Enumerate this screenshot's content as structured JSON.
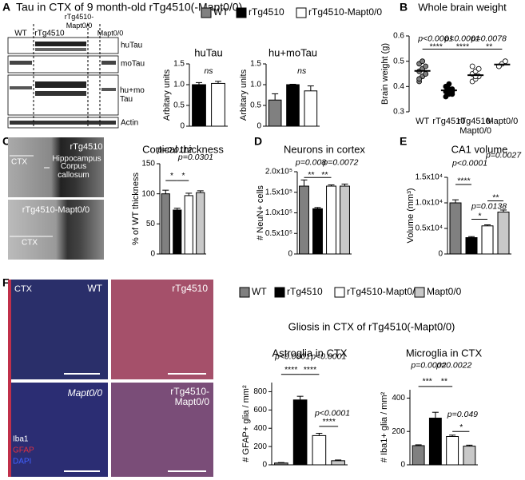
{
  "texts": {
    "title_a": "Tau in CTX of 9 month-old rTg4510(-Mapt0/0)",
    "title_f": "Gliosis in CTX of rTg4510(-Mapt0/0)"
  },
  "panel_letters": [
    "A",
    "B",
    "C",
    "D",
    "E",
    "F"
  ],
  "blot": {
    "lanes": [
      "WT",
      "rTg4510",
      "rTg4510-Mapt0/0",
      "Mapt0/0"
    ],
    "rows": [
      "huTau",
      "moTau",
      "hu+mo Tau",
      "Actin"
    ]
  },
  "images_c": [
    "rTg4510",
    "Hippocampus",
    "CTX",
    "Corpus callosum",
    "rTg4510-Mapt0/0",
    "CTX"
  ],
  "images_f": [
    "CTX",
    "WT",
    "rTg4510",
    "Mapt0/0",
    "rTg4510-Mapt0/0",
    "Iba1",
    "GFAP",
    "DAPI"
  ],
  "legends": {
    "top": [
      {
        "name": "WT",
        "color": "#808080"
      },
      {
        "name": "rTg4510",
        "color": "#000000"
      },
      {
        "name": "rTg4510-Mapt0/0",
        "color": "#ffffff"
      }
    ],
    "bottom": [
      {
        "name": "WT",
        "color": "#808080"
      },
      {
        "name": "rTg4510",
        "color": "#000000"
      },
      {
        "name": "rTg4510-Mapt0/0",
        "color": "#ffffff"
      },
      {
        "name": "Mapt0/0",
        "color": "#c8c8c8"
      }
    ]
  },
  "chart_data": [
    {
      "type": "bar",
      "title": "huTau",
      "ylabel": "Arbitary units",
      "categories": [
        null,
        null
      ],
      "values": [
        1.0,
        1.03
      ],
      "errors": [
        0.05,
        0.05
      ],
      "colors": [
        "#000000",
        "#ffffff"
      ],
      "ylim": [
        0,
        1.5
      ],
      "yticks": [
        0,
        0.5,
        {
          "value": 1,
          "label": "1.0"
        },
        1.5
      ],
      "annotations": [
        "ns"
      ]
    },
    {
      "type": "bar",
      "title": "hu+moTau",
      "ylabel": "Arbitary units",
      "categories": [
        null,
        null,
        null
      ],
      "values": [
        0.63,
        1.0,
        0.85
      ],
      "errors": [
        0.15,
        0.01,
        0.12
      ],
      "colors": [
        "#808080",
        "#000000",
        "#ffffff"
      ],
      "ylim": [
        0,
        1.5
      ],
      "yticks": [
        0,
        0.5,
        {
          "value": 1,
          "label": "1.0"
        },
        1.5
      ],
      "annotations": [
        "ns"
      ]
    },
    {
      "type": "dot",
      "title": "Whole brain weight",
      "ylabel": "Brain weight (g)",
      "categories": [
        "WT",
        "rTg4510",
        "rTg4510-Mapt0/0",
        "Mapt0/0"
      ],
      "points": [
        [
          0.42,
          0.44,
          0.45,
          0.46,
          0.47,
          0.48,
          0.49,
          0.5,
          0.45,
          0.43
        ],
        [
          0.36,
          0.37,
          0.38,
          0.38,
          0.39,
          0.39,
          0.4,
          0.41,
          0.37
        ],
        [
          0.42,
          0.43,
          0.44,
          0.45,
          0.46,
          0.47,
          0.48,
          0.44
        ],
        [
          0.48,
          0.49,
          0.5,
          0.48
        ]
      ],
      "means": [
        0.462,
        0.385,
        0.445,
        0.487
      ],
      "colors": [
        "#808080",
        "#000000",
        "#ffffff",
        "#ffffff"
      ],
      "ylim": [
        0.3,
        0.6
      ],
      "yticks": [
        0.3,
        0.4,
        0.5,
        0.6
      ],
      "annotations": [
        "p<0.0001",
        "****",
        "p<0.0001",
        "****",
        "p=0.0078",
        "**"
      ]
    },
    {
      "type": "bar",
      "title": "Cortical thickness",
      "ylabel": "% of WT thickness",
      "categories": [
        null,
        null,
        null,
        null
      ],
      "values": [
        100,
        73,
        97,
        102
      ],
      "errors": [
        6,
        3,
        4,
        3
      ],
      "colors": [
        "#808080",
        "#000000",
        "#ffffff",
        "#c8c8c8"
      ],
      "ylim": [
        0,
        150
      ],
      "yticks": [
        0,
        50,
        100,
        150
      ],
      "annotations": [
        "p=0.0112",
        "*",
        "p=0.0301",
        "*"
      ]
    },
    {
      "type": "bar",
      "title": "Neurons in cortex",
      "ylabel": "# NeuN+ cells",
      "categories": [
        null,
        null,
        null,
        null
      ],
      "values": [
        165000,
        110000,
        165000,
        165000
      ],
      "errors": [
        15000,
        3000,
        3000,
        5000
      ],
      "colors": [
        "#808080",
        "#000000",
        "#ffffff",
        "#c8c8c8"
      ],
      "ylim": [
        0,
        200000
      ],
      "yticks": [
        0,
        {
          "value": 50000,
          "label": "0.5x10⁵"
        },
        {
          "value": 100000,
          "label": "1.0x10⁵"
        },
        {
          "value": 150000,
          "label": "1.5x10⁵"
        },
        {
          "value": 200000,
          "label": "2.0x10⁵"
        }
      ],
      "annotations": [
        "p=0.008",
        "**",
        "p=0.0072",
        "**"
      ]
    },
    {
      "type": "bar",
      "title": "CA1 volume",
      "ylabel": "Volume (mm³)",
      "categories": [
        null,
        null,
        null,
        null
      ],
      "values": [
        10000,
        3200,
        5500,
        8200
      ],
      "errors": [
        600,
        200,
        200,
        400
      ],
      "colors": [
        "#808080",
        "#000000",
        "#ffffff",
        "#c8c8c8"
      ],
      "ylim": [
        0,
        15000
      ],
      "yticks": [
        0,
        {
          "value": 5000,
          "label": "0.5x10⁴"
        },
        {
          "value": 10000,
          "label": "1.0x10⁴"
        },
        {
          "value": 15000,
          "label": "1.5x10⁴"
        }
      ],
      "annotations": [
        "p<0.0001",
        "****",
        "p=0.0138",
        "*",
        "p=0.0027",
        "**"
      ]
    },
    {
      "type": "bar",
      "title": "Astroglia in CTX",
      "ylabel": "# GFAP+ glia / mm²",
      "categories": [
        null,
        null,
        null,
        null
      ],
      "values": [
        20,
        710,
        320,
        45
      ],
      "errors": [
        5,
        40,
        25,
        8
      ],
      "colors": [
        "#808080",
        "#000000",
        "#ffffff",
        "#c8c8c8"
      ],
      "ylim": [
        0,
        900
      ],
      "yticks": [
        0,
        200,
        400,
        600,
        800
      ],
      "annotations": [
        "p<0.0001",
        "****",
        "****",
        "p<0.0001",
        "p<0.0001",
        "****"
      ]
    },
    {
      "type": "bar",
      "title": "Microglia in CTX",
      "ylabel": "# Iba1+ glia / mm²",
      "categories": [
        null,
        null,
        null,
        null
      ],
      "values": [
        115,
        280,
        170,
        112
      ],
      "errors": [
        5,
        35,
        8,
        6
      ],
      "colors": [
        "#808080",
        "#000000",
        "#ffffff",
        "#c8c8c8"
      ],
      "ylim": [
        0,
        450
      ],
      "yticks": [
        0,
        200,
        400
      ],
      "annotations": [
        "p=0.0002",
        "***",
        "**",
        "p=0.0022",
        "p=0.049",
        "*"
      ]
    }
  ]
}
